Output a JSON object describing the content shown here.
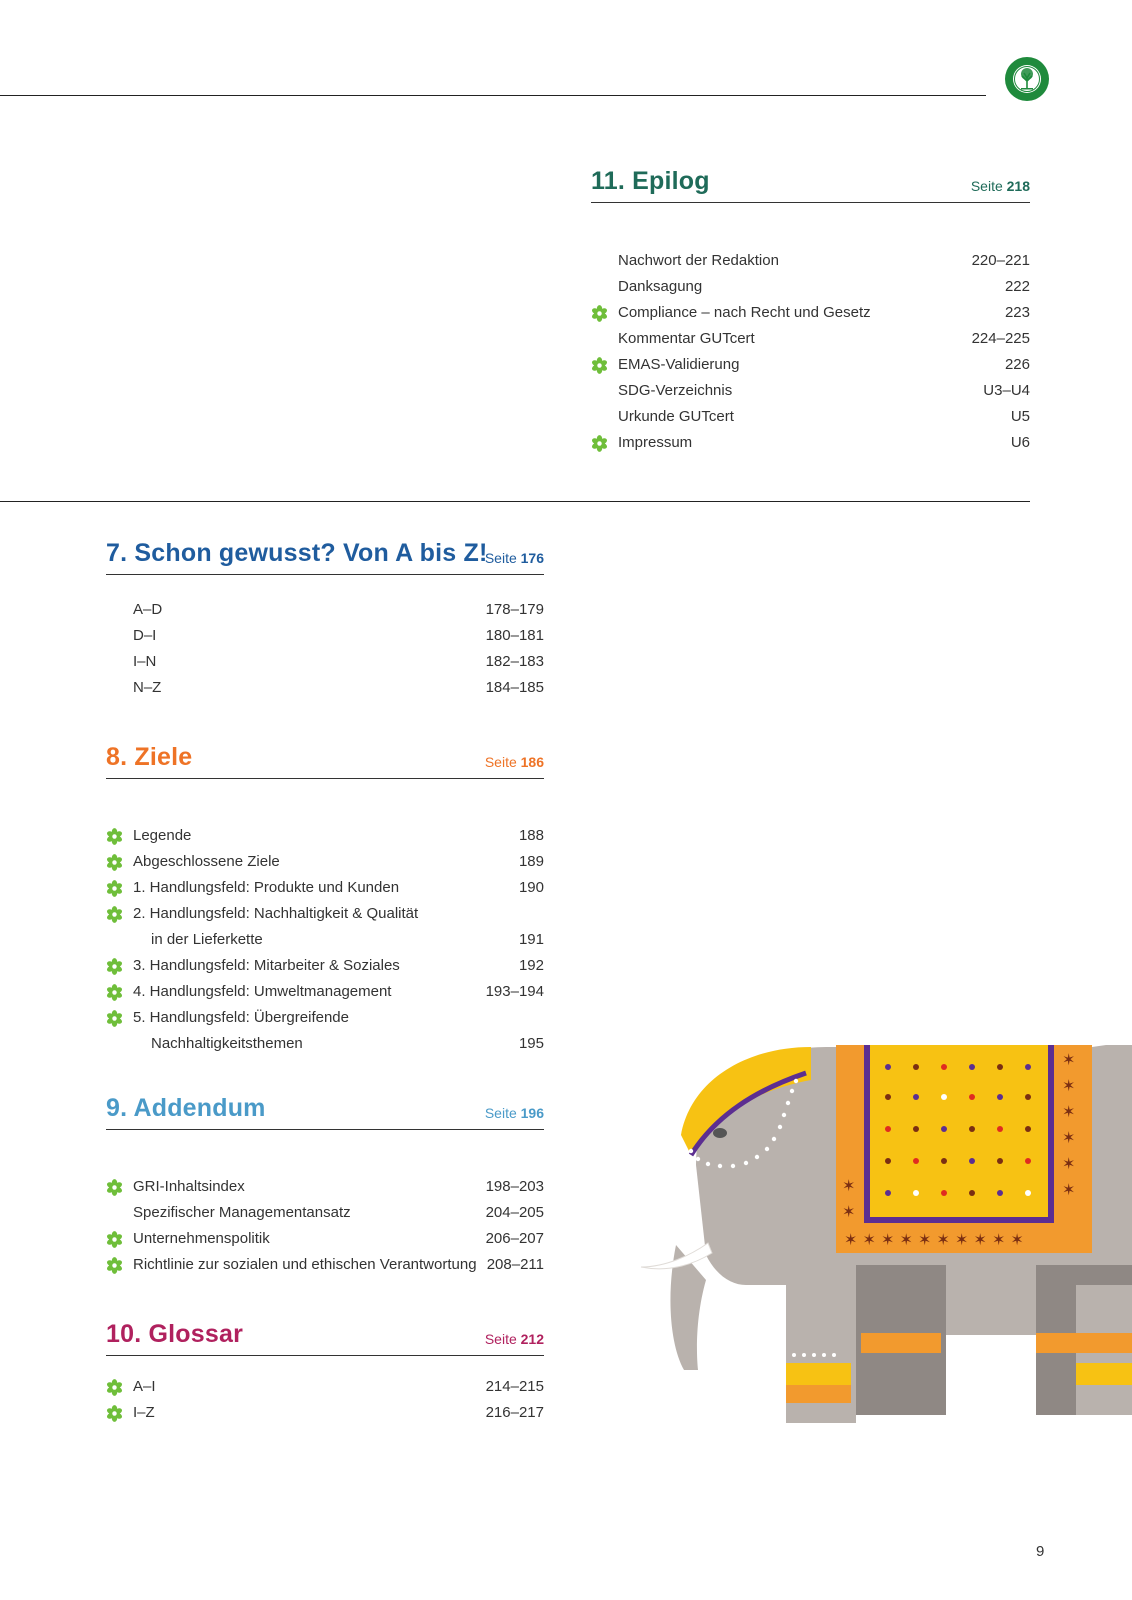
{
  "colors": {
    "epilog": "#1f6b59",
    "schon": "#1f5c9e",
    "ziele": "#ee7326",
    "addendum": "#4a9ac8",
    "glossar": "#b0215e",
    "flower": "#6fbe3a"
  },
  "seite_label": "Seite",
  "epilog": {
    "title": "11. Epilog",
    "page": "218",
    "items": [
      {
        "label": "Nachwort der Redaktion",
        "page": "220–221"
      },
      {
        "label": "Danksagung",
        "page": "222"
      },
      {
        "label": "Compliance – nach Recht und Gesetz",
        "page": "223",
        "icon": "flower-icon"
      },
      {
        "label": "Kommentar GUTcert",
        "page": "224–225"
      },
      {
        "label": "EMAS-Validierung",
        "page": "226",
        "icon": "flower-icon"
      },
      {
        "label": "SDG-Verzeichnis",
        "page": "U3–U4"
      },
      {
        "label": "Urkunde GUTcert",
        "page": "U5"
      },
      {
        "label": "Impressum",
        "page": "U6",
        "icon": "flower-icon"
      }
    ]
  },
  "schon": {
    "title": "7. Schon gewusst? Von A bis Z!",
    "page": "176",
    "items": [
      {
        "label": "A–D",
        "page": "178–179"
      },
      {
        "label": "D–I",
        "page": "180–181"
      },
      {
        "label": "I–N",
        "page": "182–183"
      },
      {
        "label": "N–Z",
        "page": "184–185"
      }
    ]
  },
  "ziele": {
    "title": "8. Ziele",
    "page": "186",
    "items": [
      {
        "label": "Legende",
        "page": "188",
        "icon": "flower-icon"
      },
      {
        "label": "Abgeschlossene Ziele",
        "page": "189",
        "icon": "flower-icon"
      },
      {
        "label": "1. Handlungsfeld: Produkte und Kunden",
        "page": "190",
        "icon": "flower-icon"
      },
      {
        "label": "2. Handlungsfeld: Nachhaltigkeit & Qualität",
        "page": "",
        "icon": "flower-icon"
      },
      {
        "label": "in der Lieferkette",
        "page": "191",
        "cont": true
      },
      {
        "label": "3. Handlungsfeld: Mitarbeiter & Soziales",
        "page": "192",
        "icon": "flower-icon"
      },
      {
        "label": "4. Handlungsfeld: Umweltmanagement",
        "page": "193–194",
        "icon": "flower-icon"
      },
      {
        "label": "5. Handlungsfeld: Übergreifende",
        "page": "",
        "icon": "flower-icon"
      },
      {
        "label": "Nachhaltigkeitsthemen",
        "page": "195",
        "cont": true
      }
    ]
  },
  "addendum": {
    "title": "9. Addendum",
    "page": "196",
    "items": [
      {
        "label": "GRI-Inhaltsindex",
        "page": "198–203",
        "icon": "flower-icon"
      },
      {
        "label": "Spezifischer Managementansatz",
        "page": "204–205"
      },
      {
        "label": "Unternehmenspolitik",
        "page": "206–207",
        "icon": "flower-icon"
      },
      {
        "label": "Richtlinie zur sozialen und ethischen Verantwortung",
        "page": "208–211",
        "icon": "flower-icon"
      }
    ]
  },
  "glossar": {
    "title": "10. Glossar",
    "page": "212",
    "items": [
      {
        "label": "A–I",
        "page": "214–215",
        "icon": "flower-icon"
      },
      {
        "label": "I–Z",
        "page": "216–217",
        "icon": "flower-icon"
      }
    ]
  },
  "page_number": "9"
}
